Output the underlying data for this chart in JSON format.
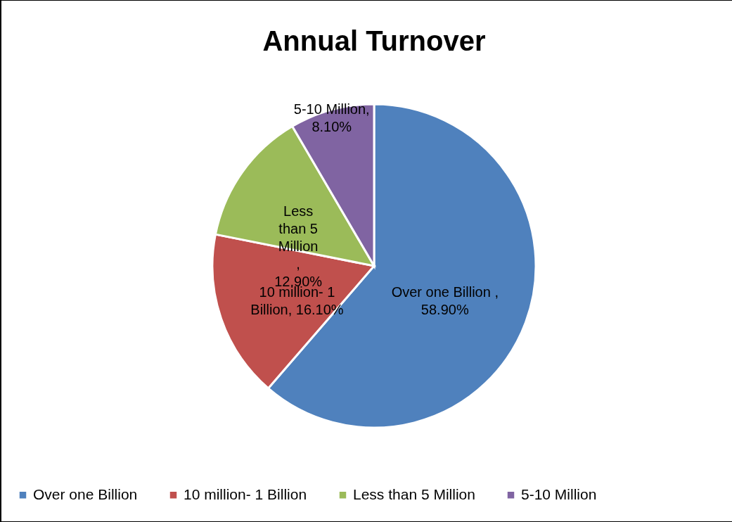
{
  "chart_data": {
    "type": "pie",
    "title": "Annual Turnover",
    "categories": [
      "Over one Billion",
      "10 million- 1 Billion",
      "Less than 5 Million",
      "5-10 Million"
    ],
    "values": [
      58.9,
      16.1,
      12.9,
      8.1
    ],
    "colors": [
      "#4f81bd",
      "#c0504d",
      "#9bbb59",
      "#8064a2"
    ],
    "value_labels": [
      "Over one Billion , 58.90%",
      "10 million- 1 Billion, 16.10%",
      "Less than 5 Million , 12.90%",
      "5-10 Million, 8.10%"
    ],
    "legend": "bottom"
  }
}
